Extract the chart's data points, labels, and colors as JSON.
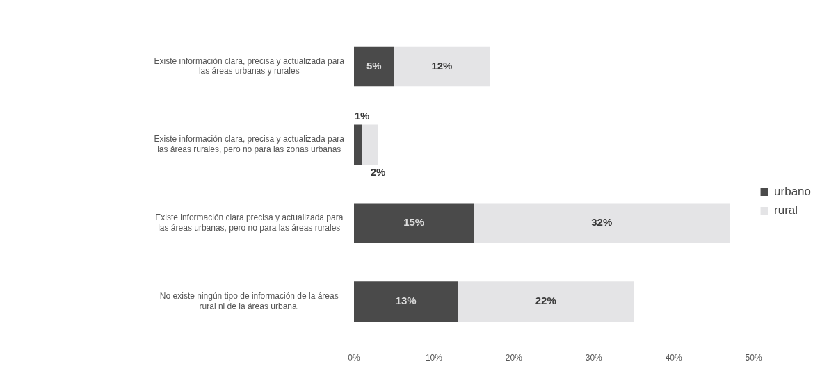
{
  "chart_data": {
    "type": "bar",
    "orientation": "horizontal",
    "stacked": true,
    "categories": [
      "Existe información clara, precisa y actualizada para las áreas urbanas y rurales",
      "Existe información clara, precisa y actualizada para las áreas rurales, pero no para las zonas urbanas",
      "Existe información clara precisa y actualizada para las áreas urbanas, pero no para las áreas rurales",
      "No existe ningún tipo de información de la áreas rural ni de la áreas urbana."
    ],
    "series": [
      {
        "name": "urbano",
        "color": "#4a4a4a",
        "values": [
          5,
          1,
          15,
          13
        ],
        "value_labels": [
          "5%",
          "1%",
          "15%",
          "13%"
        ]
      },
      {
        "name": "rural",
        "color": "#e4e4e6",
        "values": [
          12,
          2,
          32,
          22
        ],
        "value_labels": [
          "12%",
          "2%",
          "32%",
          "22%"
        ]
      }
    ],
    "xlim": [
      0,
      50
    ],
    "xticks": [
      {
        "value": 0,
        "label": "0%"
      },
      {
        "value": 10,
        "label": "10%"
      },
      {
        "value": 20,
        "label": "20%"
      },
      {
        "value": 30,
        "label": "30%"
      },
      {
        "value": 40,
        "label": "40%"
      },
      {
        "value": 50,
        "label": "50%"
      }
    ],
    "legend": "right",
    "grid": false
  }
}
